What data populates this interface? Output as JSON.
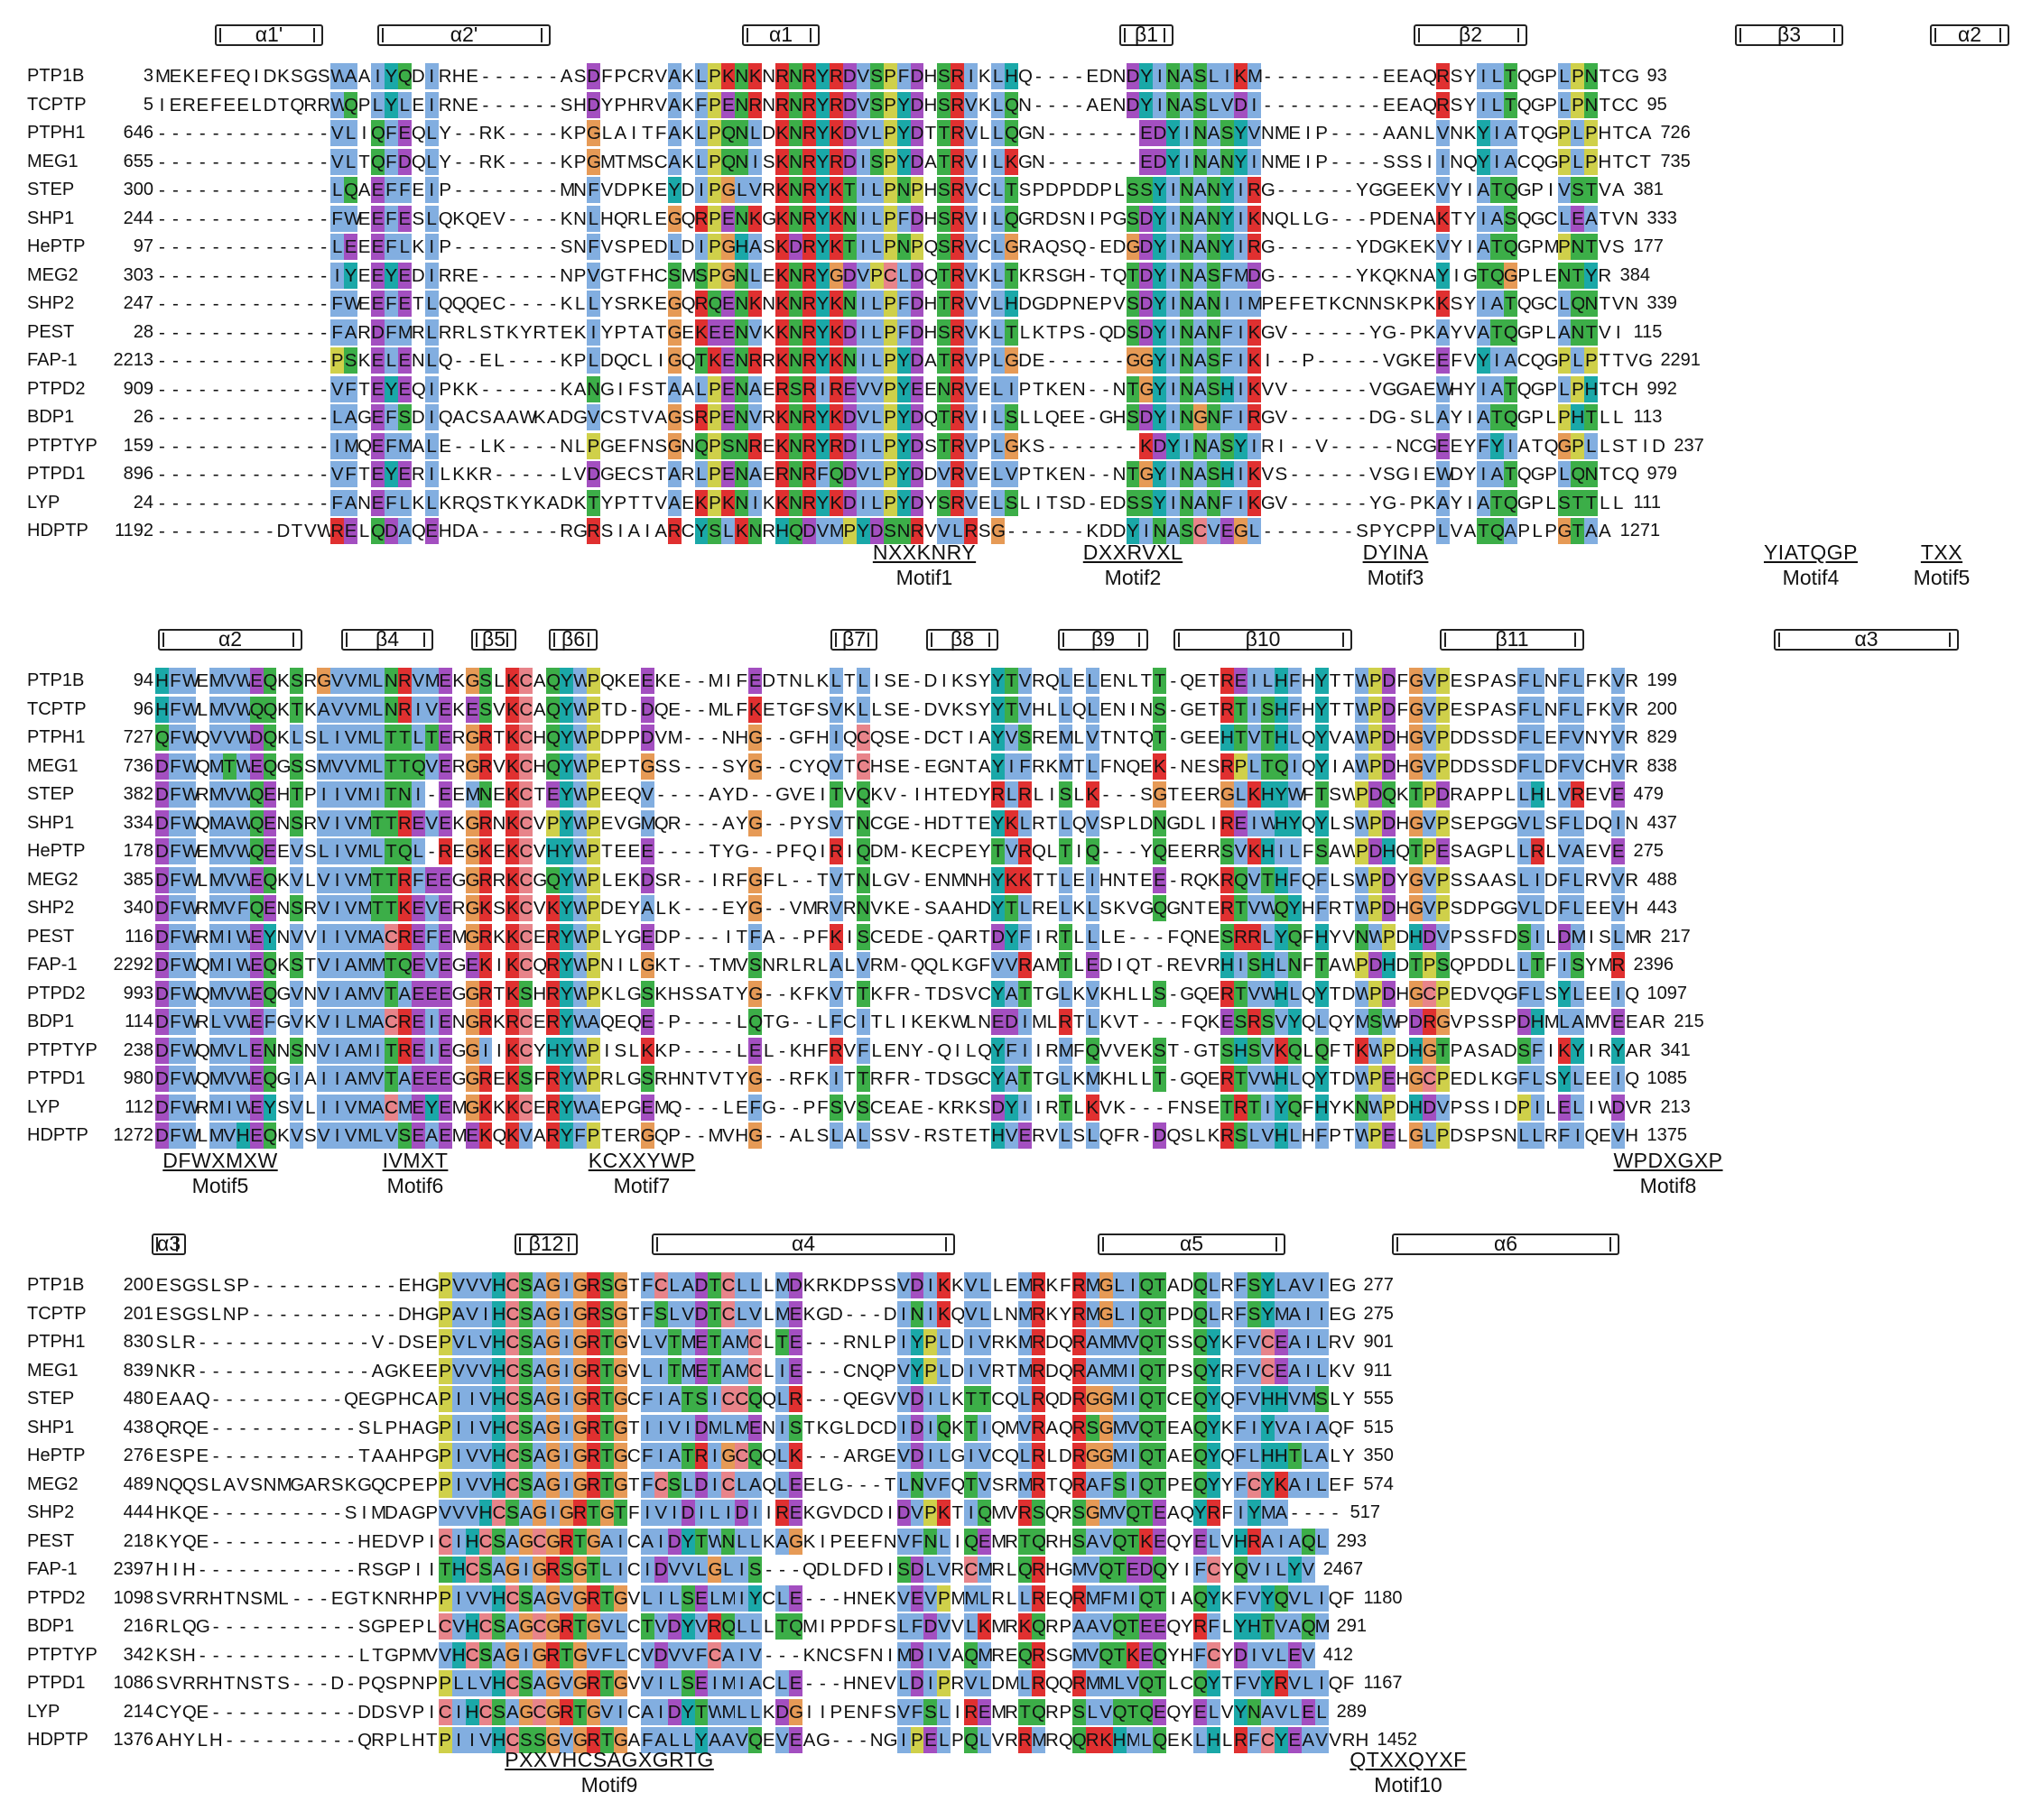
{
  "colors": {
    "blue": "#82aee0",
    "red": "#e03030",
    "green": "#3cae48",
    "teal": "#1aa8a8",
    "purple": "#a34fc0",
    "magenta": "#c25dbf",
    "orange": "#e69a56",
    "yellow": "#cfd04a",
    "pink": "#e8848a",
    "cyan": "#33b0c8"
  },
  "block1": {
    "ss": [
      {
        "label": "α1'",
        "kind": "helix"
      },
      {
        "label": "α2'",
        "kind": "helix"
      },
      {
        "label": "α1",
        "kind": "helix"
      },
      {
        "label": "β1",
        "kind": "strand"
      },
      {
        "label": "β2",
        "kind": "strand"
      },
      {
        "label": "β3",
        "kind": "strand"
      },
      {
        "label": "α2",
        "kind": "helix"
      }
    ],
    "rows": [
      {
        "name": "PTP1B",
        "start": "3",
        "seq": "MEKEFEQIDKSGSWAAIYQDIRHE------ASDFPCRVAKLPKNKNRNRYRDVSPFDHSRIKLHQ----EDNDYINASLIKM---------EEAQRSYILTQGPLPNTCG",
        "end": "93"
      },
      {
        "name": "TCPTP",
        "start": "5",
        "seq": "IEREFEELDTQRRWQPLYLEIRNE------SHDYPHRVAKFPENRNRNRYRDVSPYDHSRVKLQN----AENDYINASLVDI---------EEAQRSYILTQGPLPNTCC",
        "end": "95"
      },
      {
        "name": "PTPH1",
        "start": "646",
        "seq": "-------------VLIQFEQLY--RK----KPGLAITFAKLPQNLDKNRYKDVLPYDTTRVLLQGN-------EDYINASYVNMEIP----AANLVNKYIATQGPLPHTCA",
        "end": "726"
      },
      {
        "name": "MEG1",
        "start": "655",
        "seq": "-------------VLTQFDQLY--RK----KPGMTMSCAKLPQNISKNRYRDISPYDATRVILKGN-------EDYINANYINMEIP----SSSIINQYIACQGPLPHTCT",
        "end": "735"
      },
      {
        "name": "STEP",
        "start": "300",
        "seq": "-------------LQAEFFEIP--------MNFVDPKEYDIPGLVRKNRYKTILPNPHSRVCLTSPDPDDPLSSYINANYIRG------YGGEEKVYIATQGPIVSTVA",
        "end": "381"
      },
      {
        "name": "SHP1",
        "start": "244",
        "seq": "-------------FWEEFESLQKQEV----KNLHQRLEGQRPENKGKNRYKNILPFDHSRVILQGRDSNIPGSDYINANYIKNQLLG---PDENAKTYIASQGCLEATVN",
        "end": "333"
      },
      {
        "name": "HePTP",
        "start": "97",
        "seq": "-------------LEEEFLKIP--------SNFVSPEDLDIPGHASKDRYKTILPNPQSRVCLGRAQSQ-EDGDYINANYIRG------YDGKEKVYIATQGPMPNTVS",
        "end": "177"
      },
      {
        "name": "MEG2",
        "start": "303",
        "seq": "-------------IYEEYEDIRRE------NPVGTFHCSMSPGNLEKNRYGDVPCLDQTRVKLTKRSGH-TQTDYINASFMDG------YKQKNAYIGTQGPLENTYR",
        "end": "384"
      },
      {
        "name": "SHP2",
        "start": "247",
        "seq": "-------------FWEEFETLQQQEC----KLLYSRKEGQRQENKNKNRYKNILPFDHTRVVLHDGDPNEPVSDYINANIIMPEFETKCNNSKPKKSYIATQGCLQNTVN",
        "end": "339"
      },
      {
        "name": "PEST",
        "start": "28",
        "seq": "-------------FARDFMRLRRLSTKYRTEKIYPTATGEKEENVKKNRYKDILPFDHSRVKLTLKTPS-QDSDYINANFIKGV------YG-PKAYVATQGPLANTVI",
        "end": "115"
      },
      {
        "name": "FAP-1",
        "start": "2213",
        "seq": "-------------PSKELENLQ--EL----KPLDQCLIGQTKENRRKNRYKNILPYDATRVPLGDE------GGYINASFIKI--P-----VGKEEFVYIACQGPLPTTVG",
        "end": "2291"
      },
      {
        "name": "PTPD2",
        "start": "909",
        "seq": "-------------VFTEYEQIPKK------KANGIFSTAALPENAERSRIREVVPYEENRVELIPTKEN--NTGYINASHIKVV------VGGAEWHYIATQGPLPHTCH",
        "end": "992"
      },
      {
        "name": "BDP1",
        "start": "26",
        "seq": "-------------LAGEFSDIQACSAAWKADGVCSTVAGSRPENVRKNRYKDVLPYDQTRVILSLLQEE-GHSDYINGNFIRGV------DG-SLAYIATQGPLPHTLL",
        "end": "113"
      },
      {
        "name": "PTPTYP",
        "start": "159",
        "seq": "-------------IMQEFMALE--LK----NLPGEFNSGNQPSNREKNRYRDILPYDSTRVPLGKS-------KDYINASYIRI--V-----NCGEEYFYIATQGPLLSTID",
        "end": "237"
      },
      {
        "name": "PTPD1",
        "start": "896",
        "seq": "-------------VFTEYERILKKR-----LVDGECSTARLPENAERNRFQDVLPYDDVRVELVPTKEN--NTGYINASHIKVS------VSGIEWDYIATQGPLQNTCQ",
        "end": "979"
      },
      {
        "name": "LYP",
        "start": "24",
        "seq": "-------------FANEFLKLKRQSTKYKADKTYPTTVAEKPKNIKKNRYKDILPYDYSRVELSLITSD-EDSSYINANFIKGV------YG-PKAYIATQGPLSTTLL",
        "end": "111"
      },
      {
        "name": "HDPTP",
        "start": "1192",
        "seq": "---------DTVWRELQDAQEHDA------RGRSIAIARCYSLKNRHQDVMPYDSNRVVLRSG------KDDYINASCVEGL-------SPYCPPLVATQAPLPGTAA",
        "end": "1271"
      }
    ],
    "motifs": [
      {
        "pattern": "NXXKNRY",
        "name": "Motif1"
      },
      {
        "pattern": "DXXRVXL",
        "name": "Motif2"
      },
      {
        "pattern": "DYINA",
        "name": "Motif3"
      },
      {
        "pattern": "YIATQGP",
        "name": "Motif4"
      },
      {
        "pattern": "TXX",
        "name": "Motif5"
      }
    ]
  },
  "block2": {
    "ss": [
      {
        "label": "α2",
        "kind": "helix"
      },
      {
        "label": "β4",
        "kind": "strand"
      },
      {
        "label": "β5",
        "kind": "strand"
      },
      {
        "label": "β6",
        "kind": "strand"
      },
      {
        "label": "β7",
        "kind": "strand"
      },
      {
        "label": "β8",
        "kind": "strand"
      },
      {
        "label": "β9",
        "kind": "strand"
      },
      {
        "label": "β10",
        "kind": "strand"
      },
      {
        "label": "β11",
        "kind": "strand"
      },
      {
        "label": "α3",
        "kind": "helix"
      }
    ],
    "rows": [
      {
        "name": "PTP1B",
        "start": "94",
        "seq": "HFWEMVWEQKSRGVVMLNRVMEKGSLKCAQYWPQKEEKE--MIFEDTNLKLTLISE-DIKSYYTVRQLELENLTT-QETREILHFHYTTWPDFGVPESPASFLNFLFKVR",
        "end": "199"
      },
      {
        "name": "TCPTP",
        "start": "96",
        "seq": "HFWLMVWQQKTKAVVMLNRIVEKESVKCAQYWPTD-DQE--MLFKETGFSVKLLSE-DVKSYYTVHLLQLENINS-GETRTISHFHYTTWPDFGVPESPASFLNFLFKVR",
        "end": "200"
      },
      {
        "name": "PTPH1",
        "start": "727",
        "seq": "QFWQVVWDQKLSLIVMLTTLTERGRTKCHQYWPDPPDVM---NHG--GFHIQCQSE-DCTIAYVSREMLVTNTQT-GEEHTVTHLQYVAWPDHGVPDDSSDFLEFVNYVR",
        "end": "829"
      },
      {
        "name": "MEG1",
        "start": "736",
        "seq": "DFWQMTWEQGSSMVVMLTTQVERGRVKCHQYWPEPTGSS---SYG--CYQVTCHSE-EGNTAYIFRKMTLFNQEK-NESRPLTQIQYIAWPDHGVPDDSSDFLDFVCHVR",
        "end": "838"
      },
      {
        "name": "STEP",
        "start": "382",
        "seq": "DFWRMVWQEHTPIIVMITNI-EEMNEKCTEYWPEEQV----AYD--GVEITVQKV-IHTEDYRLRLISLK---SGTEERGLKHYWFTSWPDQKTPDRAPPLLHLVREVE",
        "end": "479"
      },
      {
        "name": "SHP1",
        "start": "334",
        "seq": "DFWQMAWQENSRVIVMTTREVEKGRNKCVPYWPEVGMQR---AYG--PYSVTNCGE-HDTTEYKLRTLQVSPLDNGDLIREIWHYQYLSWPDHGVPSEPGGVLSFLDQIN",
        "end": "437"
      },
      {
        "name": "HePTP",
        "start": "178",
        "seq": "DFWEMVWQEEVSLIVMLTQL-REGKEKCVHYWPTEEE----TYG--PFQIRIQDM-KECPEYTVRQLTIQ---YQEERRSVKHILFSAWPDHQTPESAGPLLRLVAEVE",
        "end": "275"
      },
      {
        "name": "MEG2",
        "start": "385",
        "seq": "DFWLMVWEQKVLVIVMTTRFEEGGRRKCGQYWPLEKDSR--IRFGFL--TVTNLGV-ENMNHYKKTTLEIHNTEE-RQKRQVTHFQFLSWPDYGVPSSAASLIDFLRVVR",
        "end": "488"
      },
      {
        "name": "SHP2",
        "start": "340",
        "seq": "DFWRMVFQENSRVIVMTTKEVERGKSKCVKYWPDEYALK---EYG--VMRVRNVKE-SAAHDYTLRELKLSKVGQGNTERTVWQYHFRTWPDHGVPSDPGGVLDFLEEVH",
        "end": "443"
      },
      {
        "name": "PEST",
        "start": "116",
        "seq": "DFWRMIWEYNVVIIVMACREFEMGRKKCERYWPLYGEDP---ITFA--PFKISCEDE-QARTDYFIRTLLLE---FQNESRRLYQFHYVNWPDHDVPSSFDSILDMISLMR",
        "end": "217"
      },
      {
        "name": "FAP-1",
        "start": "2292",
        "seq": "DFWQMIWEQKSTVIAMMTQEVEGEKIKCQRYWPNILGKT--TMVSNRLRLALVRM-QQLKGFVVRAMTLEDIQT-REVRHISHLNFTAWPDHDTPSQPDDLLTFISYMR",
        "end": "2396"
      },
      {
        "name": "PTPD2",
        "start": "993",
        "seq": "DFWQMVWEQGVNVIAMVTAEEEGGRTKSHRYWPKLGSKHSSATYG--KFKVTTKFR-TDSVCYATTGLKVKHLLS-GQERTVWHLQYTDWPDHGCPEDVQGFLSYLEEIQ",
        "end": "1097"
      },
      {
        "name": "BDP1",
        "start": "114",
        "seq": "DFWRLVWEFGVKVILMACREIENGRKRCERYWAQEQE-P----LQTG--LFCITLIKEKWLNEDIMLRTLKVT---FQKESRSVYQLQYMSWPDRGVPSSPDHMLAMVEEAR",
        "end": "215"
      },
      {
        "name": "PTPTYP",
        "start": "238",
        "seq": "DFWQMVLENNSNVIAMITREIEGGIIKCYHYWPISLKKP----LEL-KHFRVFLENY-QILQYFIIRMFQVVEKST-GTSHSVKQLQFTKWPDHGTPASADSFIKYIRYAR",
        "end": "341"
      },
      {
        "name": "PTPD1",
        "start": "980",
        "seq": "DFWQMVWEQGIAIIAMVTAEEEGGREKSFRYWPRLGSRHNTVTYG--RFKITTRFR-TDSGCYATTGLKMKHLLT-GQERTVWHLQYTDWPEHGCPEDLKGFLSYLEEIQ",
        "end": "1085"
      },
      {
        "name": "LYP",
        "start": "112",
        "seq": "DFWRMIWEYSVLIIVMACMEYEMGKKKCERYWAEPGEMQ---LEFG--PFSVSCEAE-KRKSDYIIRTLKVK---FNSETRTIYQFHYKNWPDHDVPSSIDPILELIWDVR",
        "end": "213"
      },
      {
        "name": "HDPTP",
        "start": "1272",
        "seq": "DFWLMVHEQKVSVIVMLVSEAEMEKQKVARYFPTERGQP--MVHG--ALSLALSSV-RSTETHVERVLSLQFR-DQSLKRSLVHLHFPTWPELGLPDSPSNLLRFIQEVH",
        "end": "1375"
      }
    ],
    "motifs": [
      {
        "pattern": "DFWXMXW",
        "name": "Motif5"
      },
      {
        "pattern": "IVMXT",
        "name": "Motif6"
      },
      {
        "pattern": "KCXXYWP",
        "name": "Motif7"
      },
      {
        "pattern": "WPDXGXP",
        "name": "Motif8"
      }
    ]
  },
  "block3": {
    "ss": [
      {
        "label": "α3",
        "kind": "helix"
      },
      {
        "label": "β12",
        "kind": "strand"
      },
      {
        "label": "α4",
        "kind": "helix"
      },
      {
        "label": "α5",
        "kind": "helix"
      },
      {
        "label": "α6",
        "kind": "helix"
      }
    ],
    "rows": [
      {
        "name": "PTP1B",
        "start": "200",
        "seq": "ESGSLSP-----------EHGPVVVHCSAGIGRSGTFCLADTCLLLMDKRKDPSSVDIKKVLLEMRKFRMGLIQTADQLRFSYLAVIEG",
        "end": "277"
      },
      {
        "name": "TCPTP",
        "start": "201",
        "seq": "ESGSLNP-----------DHGPAVIHCSAGIGRSGTFSLVDTCLVLMEKGD---DINIKQVLLNMRKYRMGLIQTPDQLRFSYMAIIEG",
        "end": "275"
      },
      {
        "name": "PTPH1",
        "start": "830",
        "seq": "SLR-------------V-DSEPVLVHCSAGIGRTGVLVTMETAMCLTE---RNLPIYPLDIVRKMRDQRAMMVQTSSQYKFVCEAILRV",
        "end": "901"
      },
      {
        "name": "MEG1",
        "start": "839",
        "seq": "NKR-------------AGKEEPVVVHCSAGIGRTGVLITMETAMCLIE---CNQPVYPLDIVRTMRDQRAMMIQTPSQYRFVCEAILKV",
        "end": "911"
      },
      {
        "name": "STEP",
        "start": "480",
        "seq": "EAAQ----------QEGPHCAPIIVHCSAGIGRTGCFIATSICCQQLR---QEGVVDILKTTCQLRQDRGGMIQTCEQYQFVHHVMSLY",
        "end": "555"
      },
      {
        "name": "SHP1",
        "start": "438",
        "seq": "QRQE-----------SLPHAGPIIVHCSAGIGRTGTIIVIDMLMENISTKGLDCDIDIQKTIQMVRAQRSGMVQTEAQYKFIYVAIAQF",
        "end": "515"
      },
      {
        "name": "HePTP",
        "start": "276",
        "seq": "ESPE-----------TAAHPGPIVVHCSAGIGRTGCFIATRIGCQQLK---ARGEVDILGIVCQLRLDRGGMIQTAEQYQFLHHTLALY",
        "end": "350"
      },
      {
        "name": "MEG2",
        "start": "489",
        "seq": "NQQSLAVSNMGARSKGQCPEPPIVVHCSAGIGRTGTFCSLDICLAQLEELG---TLNVFQTVSRMRTQRAFSIQTPEQYYFCYKAILEF",
        "end": "574"
      },
      {
        "name": "SHP2",
        "start": "444",
        "seq": "HKQE----------SIMDAGPVVVHCSAGIGRTGTFIVIDILIDIIREKGVDCDIDVPKTIQMVRSQRSGMVQTEAQYRFIYMA----",
        "end": "517"
      },
      {
        "name": "PEST",
        "start": "218",
        "seq": "KYQE-----------HEDVPICIHCSAGCGRTGAICAIDYTWNLLKAGKIPEEFNVFNLIQEMRTQRHSAVQTKEQYELVHRAIAQL",
        "end": "293"
      },
      {
        "name": "FAP-1",
        "start": "2397",
        "seq": "HIH------------RSGPIITHCSAGIGRSGTLICIDVVLGLIS---QDLDFDISDLVRCMRLQRHGMVQTEDQYIFCYQVILYV",
        "end": "2467"
      },
      {
        "name": "PTPD2",
        "start": "1098",
        "seq": "SVRRHTNSML---EGTKNRHPPIVVHCSAGVGRTGVLILSELMIYCLE---HNEKVEVPMMLRLLREQRMFMIQTIAQYKFVYQVLIQF",
        "end": "1180"
      },
      {
        "name": "BDP1",
        "start": "216",
        "seq": "RLQG-----------SGPEPLCVHCSAGCGRTGVLCTVDYVRQLLLTQMIPPDFSLFDVVLKMRKQRPAAVQTEEQYRFLYHTVAQM",
        "end": "291"
      },
      {
        "name": "PTPTYP",
        "start": "342",
        "seq": "KSH------------LTGPMVVHCSAGIGRTGVFLCVDVVFCAIV---KNCSFNIMDIVAQMREQRSGMVQTKEQYHFCYDIVLEV",
        "end": "412"
      },
      {
        "name": "PTPD1",
        "start": "1086",
        "seq": "SVRRHTNSTS---D-PQSPNPPLLVHCSAGVGRTGVVILSEIMIACLE---HNEVLDIPRVLDMLRQQRMMLVQTLCQYTFVYRVLIQF",
        "end": "1167"
      },
      {
        "name": "LYP",
        "start": "214",
        "seq": "CYQE-----------DDSVPICIHCSAGCGRTGVICAIDYTWMLLKDGIIPENFSVFSLIREMRTQRPSLVQTQEQYELVYNAVLEL",
        "end": "289"
      },
      {
        "name": "HDPTP",
        "start": "1376",
        "seq": "AHYLH----------QRPLHTPIIVHCSSGVGRTGAFALLYAAVQEVEAG---NGIPELPQLVRRMRQQRKHMLQEKLHLRFCYEAVVRH",
        "end": "1452"
      }
    ],
    "motifs": [
      {
        "pattern": "PXXVHCSAGXGRTG",
        "name": "Motif9"
      },
      {
        "pattern": "QTXXQYXF",
        "name": "Motif10"
      }
    ]
  }
}
